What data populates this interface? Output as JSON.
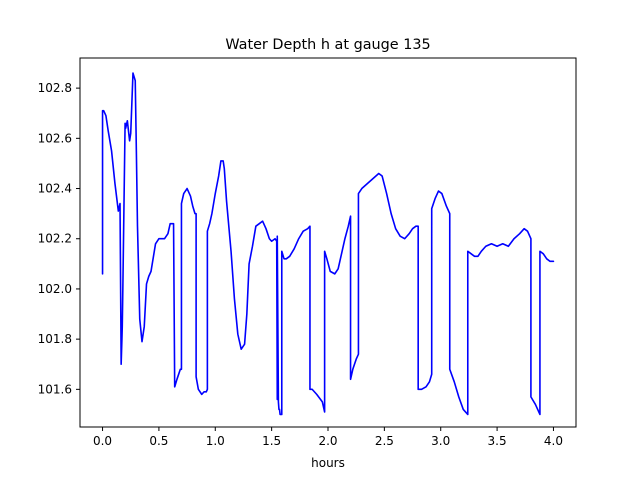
{
  "chart_data": {
    "type": "line",
    "title": "Water Depth h at gauge 135",
    "xlabel": "hours",
    "ylabel": "",
    "xlim": [
      -0.2,
      4.2
    ],
    "ylim": [
      101.45,
      102.92
    ],
    "xticks": [
      0.0,
      0.5,
      1.0,
      1.5,
      2.0,
      2.5,
      3.0,
      3.5,
      4.0
    ],
    "xtick_labels": [
      "0.0",
      "0.5",
      "1.0",
      "1.5",
      "2.0",
      "2.5",
      "3.0",
      "3.5",
      "4.0"
    ],
    "yticks": [
      101.6,
      101.8,
      102.0,
      102.2,
      102.4,
      102.6,
      102.8
    ],
    "ytick_labels": [
      "101.6",
      "101.8",
      "102.0",
      "102.2",
      "102.4",
      "102.6",
      "102.8"
    ],
    "grid": false,
    "series": [
      {
        "color": "#0000ff",
        "x": [
          0.0,
          0.0,
          0.01,
          0.03,
          0.05,
          0.08,
          0.11,
          0.14,
          0.155,
          0.165,
          0.172,
          0.175,
          0.18,
          0.2,
          0.205,
          0.22,
          0.24,
          0.25,
          0.27,
          0.29,
          0.3,
          0.31,
          0.33,
          0.35,
          0.37,
          0.39,
          0.41,
          0.43,
          0.47,
          0.5,
          0.52,
          0.55,
          0.58,
          0.6,
          0.63,
          0.64,
          0.64,
          0.66,
          0.69,
          0.7,
          0.7,
          0.72,
          0.75,
          0.78,
          0.8,
          0.82,
          0.83,
          0.83,
          0.85,
          0.88,
          0.9,
          0.92,
          0.93,
          0.93,
          0.95,
          0.97,
          1.0,
          1.03,
          1.05,
          1.07,
          1.08,
          1.1,
          1.14,
          1.17,
          1.2,
          1.23,
          1.26,
          1.28,
          1.3,
          1.33,
          1.36,
          1.39,
          1.42,
          1.45,
          1.48,
          1.5,
          1.53,
          1.545,
          1.55,
          1.55,
          1.56,
          1.565,
          1.57,
          1.575,
          1.59,
          1.59,
          1.61,
          1.63,
          1.66,
          1.7,
          1.74,
          1.78,
          1.82,
          1.84,
          1.84,
          1.86,
          1.9,
          1.95,
          1.97,
          1.97,
          1.99,
          2.02,
          2.06,
          2.09,
          2.12,
          2.15,
          2.18,
          2.2,
          2.2,
          2.22,
          2.25,
          2.27,
          2.27,
          2.3,
          2.35,
          2.4,
          2.45,
          2.48,
          2.52,
          2.56,
          2.6,
          2.64,
          2.68,
          2.72,
          2.75,
          2.78,
          2.8,
          2.8,
          2.83,
          2.87,
          2.9,
          2.92,
          2.92,
          2.95,
          2.98,
          3.01,
          3.05,
          3.08,
          3.08,
          3.12,
          3.16,
          3.2,
          3.24,
          3.24,
          3.27,
          3.3,
          3.33,
          3.36,
          3.4,
          3.45,
          3.5,
          3.55,
          3.6,
          3.65,
          3.7,
          3.74,
          3.77,
          3.8,
          3.8,
          3.84,
          3.88,
          3.88,
          3.91,
          3.94,
          3.97,
          4.0
        ],
        "y": [
          102.06,
          102.71,
          102.71,
          102.69,
          102.63,
          102.55,
          102.42,
          102.31,
          102.34,
          101.7,
          101.8,
          101.85,
          102.0,
          102.66,
          102.64,
          102.67,
          102.59,
          102.62,
          102.86,
          102.83,
          102.55,
          102.25,
          101.88,
          101.79,
          101.85,
          102.02,
          102.05,
          102.07,
          102.18,
          102.2,
          102.2,
          102.2,
          102.22,
          102.26,
          102.26,
          101.61,
          101.61,
          101.64,
          101.68,
          101.68,
          102.34,
          102.38,
          102.4,
          102.37,
          102.33,
          102.3,
          102.3,
          101.65,
          101.6,
          101.58,
          101.59,
          101.59,
          101.6,
          102.23,
          102.26,
          102.3,
          102.38,
          102.45,
          102.51,
          102.51,
          102.48,
          102.35,
          102.15,
          101.96,
          101.82,
          101.76,
          101.78,
          101.9,
          102.1,
          102.17,
          102.25,
          102.26,
          102.27,
          102.24,
          102.2,
          102.19,
          102.2,
          102.19,
          101.56,
          102.21,
          101.55,
          101.52,
          101.52,
          101.5,
          101.5,
          102.15,
          102.12,
          102.12,
          102.13,
          102.16,
          102.2,
          102.23,
          102.24,
          102.25,
          101.6,
          101.6,
          101.58,
          101.55,
          101.51,
          102.15,
          102.12,
          102.07,
          102.06,
          102.08,
          102.14,
          102.2,
          102.25,
          102.29,
          101.64,
          101.68,
          101.72,
          101.74,
          102.38,
          102.4,
          102.42,
          102.44,
          102.46,
          102.45,
          102.38,
          102.3,
          102.24,
          102.21,
          102.2,
          102.22,
          102.24,
          102.25,
          102.25,
          101.6,
          101.6,
          101.61,
          101.63,
          101.66,
          102.32,
          102.36,
          102.39,
          102.38,
          102.33,
          102.3,
          101.68,
          101.63,
          101.57,
          101.52,
          101.5,
          102.15,
          102.14,
          102.13,
          102.13,
          102.15,
          102.17,
          102.18,
          102.17,
          102.18,
          102.17,
          102.2,
          102.22,
          102.24,
          102.23,
          102.2,
          101.57,
          101.54,
          101.5,
          102.15,
          102.14,
          102.12,
          102.11,
          102.11
        ]
      }
    ]
  }
}
